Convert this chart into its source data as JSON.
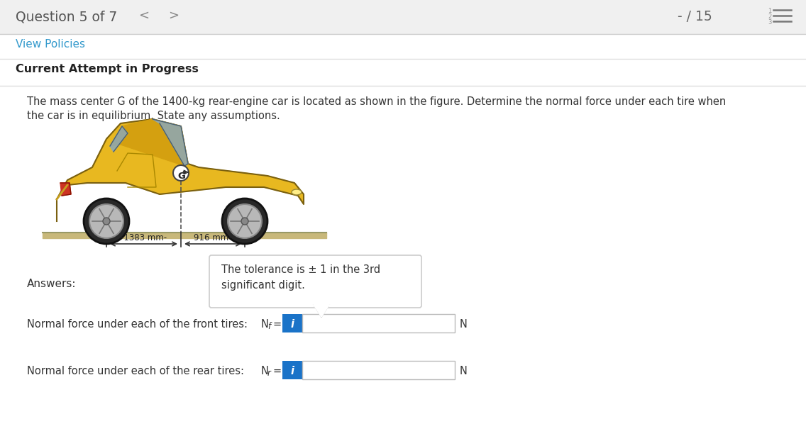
{
  "title_text": "Question 5 of 7",
  "score_text": "- / 15",
  "nav_prev": "<",
  "nav_next": ">",
  "view_policies": "View Policies",
  "current_attempt": "Current Attempt in Progress",
  "problem_text_line1": "The mass center G of the 1400-kg rear-engine car is located as shown in the figure. Determine the normal force under each tire when",
  "problem_text_line2": "the car is in equilibrium. State any assumptions.",
  "dim_left": "-1383 mm-",
  "dim_right": "916 mm-",
  "tolerance_text_line1": "The tolerance is ± 1 in the 3rd",
  "tolerance_text_line2": "significant digit.",
  "answers_label": "Answers:",
  "front_label": "Normal force under each of the front tires:",
  "rear_label": "Normal force under each of the rear tires:",
  "unit": "N",
  "bg_color": "#f0f0f0",
  "header_bg": "#f0f0f0",
  "content_bg": "#ffffff",
  "link_color": "#3399cc",
  "text_color": "#222222",
  "input_bg": "#ffffff",
  "input_border": "#bbbbbb",
  "info_btn_color": "#1a73c8",
  "tooltip_bg": "#ffffff",
  "tooltip_border": "#cccccc",
  "divider_color": "#dddddd"
}
